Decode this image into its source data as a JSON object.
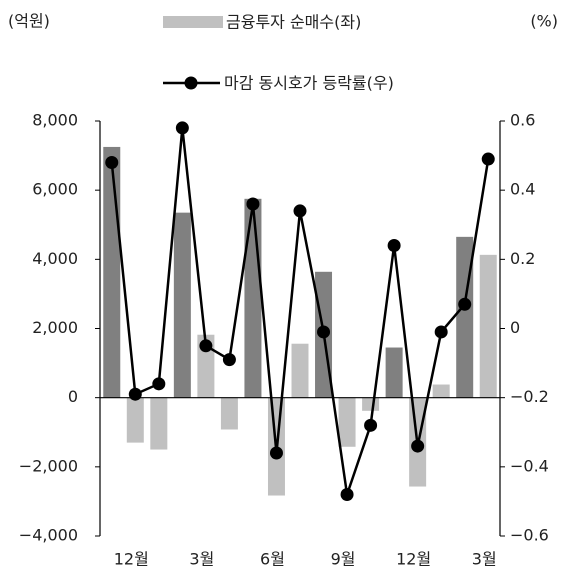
{
  "chart_data": {
    "type": "bar-line",
    "y_label": "(억원)",
    "y2_label": "(%)",
    "categories": [
      null,
      "12월",
      null,
      null,
      "3월",
      null,
      null,
      "6월",
      null,
      null,
      "9월",
      null,
      null,
      "12월",
      null,
      null,
      "3월"
    ],
    "series": [
      {
        "name": "금융투자 순매수(좌)",
        "type": "bar",
        "axis": "y",
        "color": "#c0c0c0",
        "colors": [
          "#808080",
          "#c0c0c0",
          "#c0c0c0",
          "#808080",
          "#c0c0c0",
          "#c0c0c0",
          "#808080",
          "#c0c0c0",
          "#c0c0c0",
          "#808080",
          "#c0c0c0",
          "#c0c0c0",
          "#808080",
          "#c0c0c0",
          "#c0c0c0",
          "#808080",
          "#c0c0c0"
        ],
        "values": [
          7250,
          -1300,
          -1500,
          5350,
          1820,
          -920,
          5750,
          -2830,
          1560,
          3640,
          -1420,
          -380,
          1450,
          -2570,
          380,
          4650,
          4130
        ]
      },
      {
        "name": "마감 동시호가 등락률(우)",
        "type": "line",
        "axis": "y2",
        "color": "#000000",
        "values": [
          0.48,
          -0.19,
          -0.16,
          0.58,
          -0.05,
          -0.09,
          0.36,
          -0.36,
          0.34,
          -0.01,
          -0.48,
          -0.28,
          0.24,
          -0.34,
          -0.01,
          0.07,
          0.49
        ]
      }
    ],
    "ylim": [
      -4000,
      8000
    ],
    "yticks": [
      {
        "value": -4000,
        "label": "−4,000"
      },
      {
        "value": -2000,
        "label": "−2,000"
      },
      0,
      {
        "value": 2000,
        "label": "2,000"
      },
      {
        "value": 4000,
        "label": "4,000"
      },
      {
        "value": 6000,
        "label": "6,000"
      },
      {
        "value": 8000,
        "label": "8,000"
      }
    ],
    "y2lim": [
      -0.6,
      0.6
    ],
    "y2ticks": [
      {
        "value": -0.6,
        "label": "−0.6"
      },
      {
        "value": -0.4,
        "label": "−0.4"
      },
      {
        "value": -0.2,
        "label": "−0.2"
      },
      0,
      0.2,
      0.4,
      0.6
    ]
  }
}
